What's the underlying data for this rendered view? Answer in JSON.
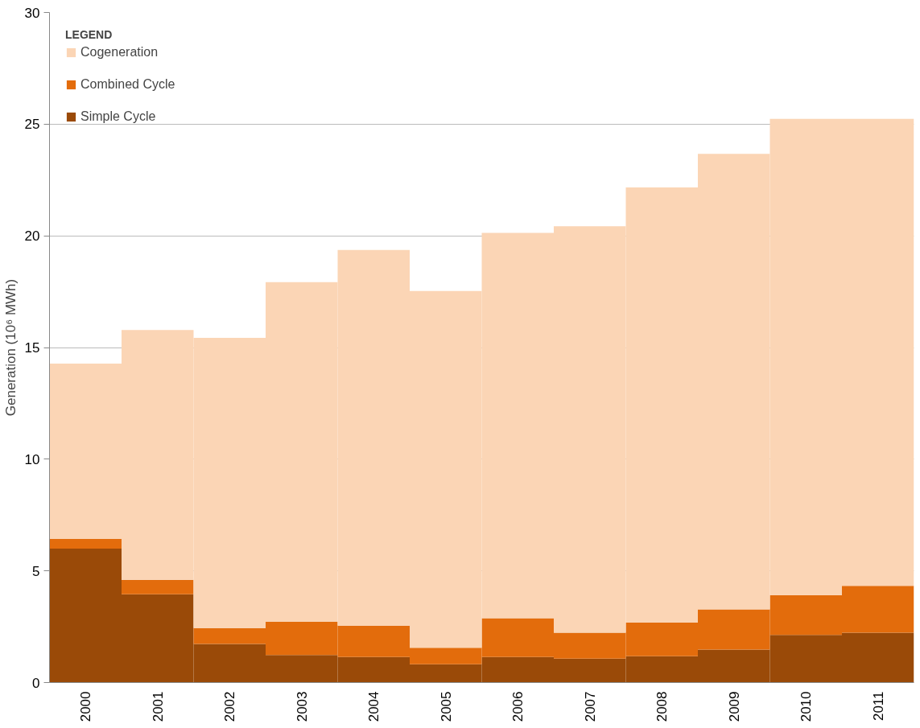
{
  "chart_data": {
    "type": "bar",
    "stacked": true,
    "ylabel": "Generation (10⁶ MWh)",
    "legend_title": "LEGEND",
    "categories": [
      "2000",
      "2001",
      "2002",
      "2003",
      "2004",
      "2005",
      "2006",
      "2007",
      "2008",
      "2009",
      "2010",
      "2011"
    ],
    "series": [
      {
        "name": "Simple Cycle",
        "color": "#9a4a08",
        "values": [
          6.0,
          3.95,
          1.73,
          1.23,
          1.14,
          0.82,
          1.14,
          1.07,
          1.18,
          1.48,
          2.13,
          2.23
        ]
      },
      {
        "name": "Combined Cycle",
        "color": "#e36c0c",
        "values": [
          0.43,
          0.65,
          0.71,
          1.5,
          1.41,
          0.74,
          1.74,
          1.16,
          1.51,
          1.8,
          1.79,
          2.1
        ]
      },
      {
        "name": "Cogeneration",
        "color": "#fbd5b5",
        "values": [
          7.85,
          11.18,
          12.99,
          15.2,
          16.82,
          15.97,
          17.25,
          18.2,
          19.48,
          20.39,
          21.32,
          20.91
        ]
      }
    ],
    "ylim": [
      0,
      30
    ],
    "yticks": [
      0,
      5,
      10,
      15,
      20,
      25,
      30
    ],
    "grid": "y",
    "legend": "top left"
  }
}
